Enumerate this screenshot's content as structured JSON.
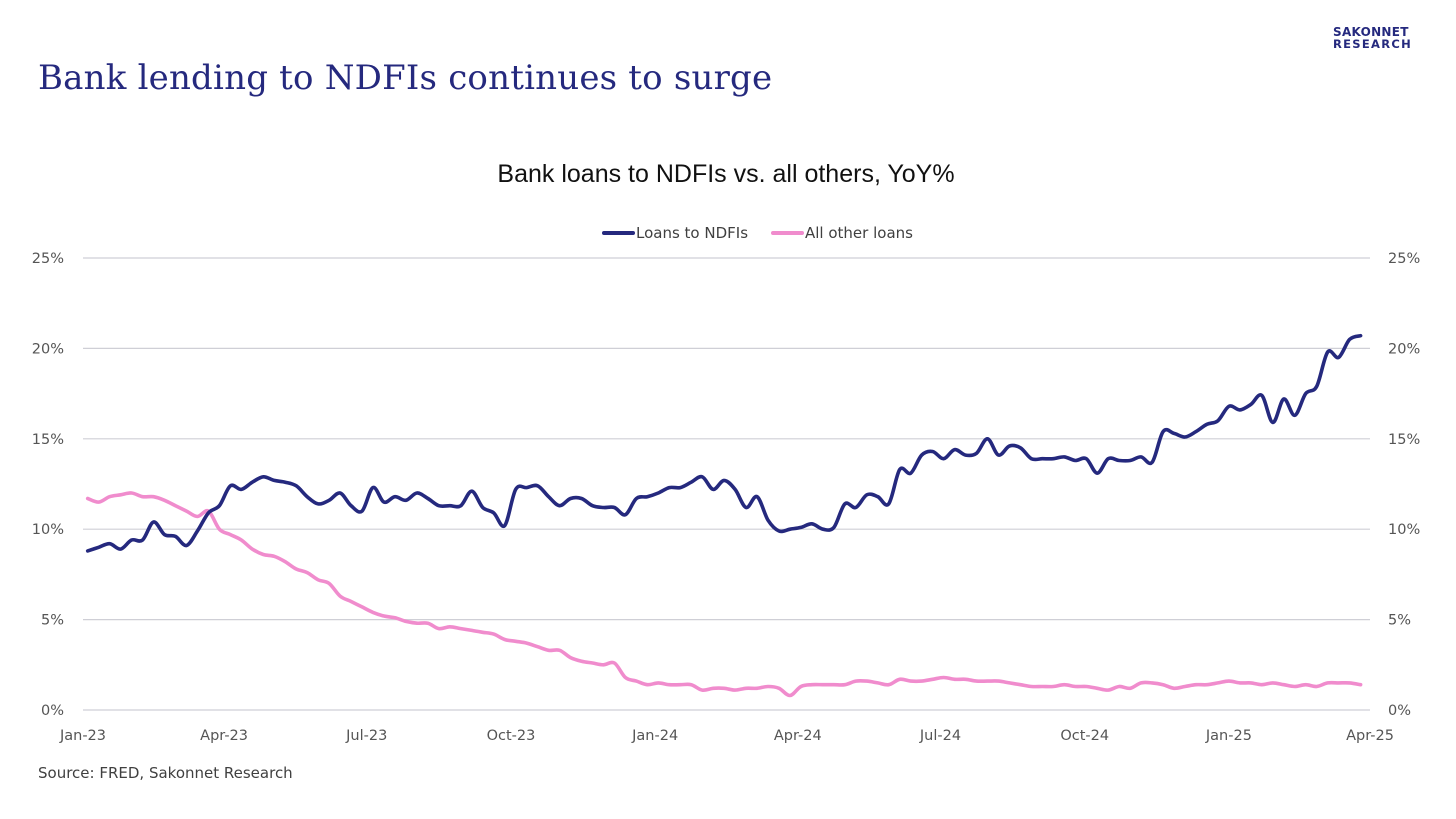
{
  "slide": {
    "title": "Bank lending to NDFIs continues to surge",
    "logo_line1": "SAKONNET",
    "logo_line2": "RESEARCH",
    "source": "Source: FRED, Sakonnet Research"
  },
  "colors": {
    "title": "#25297e",
    "series_ndfi": "#25297e",
    "series_other": "#f08ccd",
    "grid": "#cfcfd6",
    "axis_text": "#555555"
  },
  "chart_data": {
    "type": "line",
    "title": "Bank loans to NDFIs vs. all others, YoY%",
    "xlabel": "",
    "ylabel": "",
    "ylim": [
      0,
      25
    ],
    "y_ticks": [
      0,
      5,
      10,
      15,
      20,
      25
    ],
    "y_tick_labels": [
      "0%",
      "5%",
      "10%",
      "15%",
      "20%",
      "25%"
    ],
    "y_axis_both_sides": true,
    "x_ticks": [
      "2023-01-01",
      "2023-04-01",
      "2023-07-01",
      "2023-10-01",
      "2024-01-01",
      "2024-04-01",
      "2024-07-01",
      "2024-10-01",
      "2025-01-01",
      "2025-04-01"
    ],
    "x_tick_labels": [
      "Jan-23",
      "Apr-23",
      "Jul-23",
      "Oct-23",
      "Jan-24",
      "Apr-24",
      "Jul-24",
      "Oct-24",
      "Jan-25",
      "Apr-25"
    ],
    "xlim": [
      "2023-01-01",
      "2025-04-01"
    ],
    "grid": "horizontal",
    "legend_position": "top-center",
    "series": [
      {
        "name": "Loans to NDFIs",
        "color": "#25297e",
        "points": [
          [
            "2023-01-04",
            8.8
          ],
          [
            "2023-01-11",
            9.0
          ],
          [
            "2023-01-18",
            9.2
          ],
          [
            "2023-01-25",
            8.9
          ],
          [
            "2023-02-01",
            9.4
          ],
          [
            "2023-02-08",
            9.4
          ],
          [
            "2023-02-15",
            10.4
          ],
          [
            "2023-02-22",
            9.7
          ],
          [
            "2023-03-01",
            9.6
          ],
          [
            "2023-03-08",
            9.1
          ],
          [
            "2023-03-15",
            9.9
          ],
          [
            "2023-03-22",
            10.9
          ],
          [
            "2023-03-29",
            11.3
          ],
          [
            "2023-04-05",
            12.4
          ],
          [
            "2023-04-12",
            12.2
          ],
          [
            "2023-04-19",
            12.6
          ],
          [
            "2023-04-26",
            12.9
          ],
          [
            "2023-05-03",
            12.7
          ],
          [
            "2023-05-10",
            12.6
          ],
          [
            "2023-05-17",
            12.4
          ],
          [
            "2023-05-24",
            11.8
          ],
          [
            "2023-05-31",
            11.4
          ],
          [
            "2023-06-07",
            11.6
          ],
          [
            "2023-06-14",
            12.0
          ],
          [
            "2023-06-21",
            11.3
          ],
          [
            "2023-06-28",
            11.0
          ],
          [
            "2023-07-05",
            12.3
          ],
          [
            "2023-07-12",
            11.5
          ],
          [
            "2023-07-19",
            11.8
          ],
          [
            "2023-07-26",
            11.6
          ],
          [
            "2023-08-02",
            12.0
          ],
          [
            "2023-08-09",
            11.7
          ],
          [
            "2023-08-16",
            11.3
          ],
          [
            "2023-08-23",
            11.3
          ],
          [
            "2023-08-30",
            11.3
          ],
          [
            "2023-09-06",
            12.1
          ],
          [
            "2023-09-13",
            11.2
          ],
          [
            "2023-09-20",
            10.9
          ],
          [
            "2023-09-27",
            10.2
          ],
          [
            "2023-10-04",
            12.2
          ],
          [
            "2023-10-11",
            12.3
          ],
          [
            "2023-10-18",
            12.4
          ],
          [
            "2023-10-25",
            11.8
          ],
          [
            "2023-11-01",
            11.3
          ],
          [
            "2023-11-08",
            11.7
          ],
          [
            "2023-11-15",
            11.7
          ],
          [
            "2023-11-22",
            11.3
          ],
          [
            "2023-11-29",
            11.2
          ],
          [
            "2023-12-06",
            11.2
          ],
          [
            "2023-12-13",
            10.8
          ],
          [
            "2023-12-20",
            11.7
          ],
          [
            "2023-12-27",
            11.8
          ],
          [
            "2024-01-03",
            12.0
          ],
          [
            "2024-01-10",
            12.3
          ],
          [
            "2024-01-17",
            12.3
          ],
          [
            "2024-01-24",
            12.6
          ],
          [
            "2024-01-31",
            12.9
          ],
          [
            "2024-02-07",
            12.2
          ],
          [
            "2024-02-14",
            12.7
          ],
          [
            "2024-02-21",
            12.2
          ],
          [
            "2024-02-28",
            11.2
          ],
          [
            "2024-03-06",
            11.8
          ],
          [
            "2024-03-13",
            10.5
          ],
          [
            "2024-03-20",
            9.9
          ],
          [
            "2024-03-27",
            10.0
          ],
          [
            "2024-04-03",
            10.1
          ],
          [
            "2024-04-10",
            10.3
          ],
          [
            "2024-04-17",
            10.0
          ],
          [
            "2024-04-24",
            10.1
          ],
          [
            "2024-05-01",
            11.4
          ],
          [
            "2024-05-08",
            11.2
          ],
          [
            "2024-05-15",
            11.9
          ],
          [
            "2024-05-22",
            11.8
          ],
          [
            "2024-05-29",
            11.4
          ],
          [
            "2024-06-05",
            13.3
          ],
          [
            "2024-06-12",
            13.1
          ],
          [
            "2024-06-19",
            14.1
          ],
          [
            "2024-06-26",
            14.3
          ],
          [
            "2024-07-03",
            13.9
          ],
          [
            "2024-07-10",
            14.4
          ],
          [
            "2024-07-17",
            14.1
          ],
          [
            "2024-07-24",
            14.2
          ],
          [
            "2024-07-31",
            15.0
          ],
          [
            "2024-08-07",
            14.1
          ],
          [
            "2024-08-14",
            14.6
          ],
          [
            "2024-08-21",
            14.5
          ],
          [
            "2024-08-28",
            13.9
          ],
          [
            "2024-09-04",
            13.9
          ],
          [
            "2024-09-11",
            13.9
          ],
          [
            "2024-09-18",
            14.0
          ],
          [
            "2024-09-25",
            13.8
          ],
          [
            "2024-10-02",
            13.9
          ],
          [
            "2024-10-09",
            13.1
          ],
          [
            "2024-10-16",
            13.9
          ],
          [
            "2024-10-23",
            13.8
          ],
          [
            "2024-10-30",
            13.8
          ],
          [
            "2024-11-06",
            14.0
          ],
          [
            "2024-11-13",
            13.7
          ],
          [
            "2024-11-20",
            15.4
          ],
          [
            "2024-11-27",
            15.3
          ],
          [
            "2024-12-04",
            15.1
          ],
          [
            "2024-12-11",
            15.4
          ],
          [
            "2024-12-18",
            15.8
          ],
          [
            "2024-12-25",
            16.0
          ],
          [
            "2025-01-01",
            16.8
          ],
          [
            "2025-01-08",
            16.6
          ],
          [
            "2025-01-15",
            16.9
          ],
          [
            "2025-01-22",
            17.4
          ],
          [
            "2025-01-29",
            15.9
          ],
          [
            "2025-02-05",
            17.2
          ],
          [
            "2025-02-12",
            16.3
          ],
          [
            "2025-02-19",
            17.5
          ],
          [
            "2025-02-26",
            17.9
          ],
          [
            "2025-03-05",
            19.8
          ],
          [
            "2025-03-12",
            19.5
          ],
          [
            "2025-03-19",
            20.5
          ],
          [
            "2025-03-26",
            20.7
          ]
        ]
      },
      {
        "name": "All other loans",
        "color": "#f08ccd",
        "points": [
          [
            "2023-01-04",
            11.7
          ],
          [
            "2023-01-11",
            11.5
          ],
          [
            "2023-01-18",
            11.8
          ],
          [
            "2023-01-25",
            11.9
          ],
          [
            "2023-02-01",
            12.0
          ],
          [
            "2023-02-08",
            11.8
          ],
          [
            "2023-02-15",
            11.8
          ],
          [
            "2023-02-22",
            11.6
          ],
          [
            "2023-03-01",
            11.3
          ],
          [
            "2023-03-08",
            11.0
          ],
          [
            "2023-03-15",
            10.7
          ],
          [
            "2023-03-22",
            11.0
          ],
          [
            "2023-03-29",
            10.0
          ],
          [
            "2023-04-05",
            9.7
          ],
          [
            "2023-04-12",
            9.4
          ],
          [
            "2023-04-19",
            8.9
          ],
          [
            "2023-04-26",
            8.6
          ],
          [
            "2023-05-03",
            8.5
          ],
          [
            "2023-05-10",
            8.2
          ],
          [
            "2023-05-17",
            7.8
          ],
          [
            "2023-05-24",
            7.6
          ],
          [
            "2023-05-31",
            7.2
          ],
          [
            "2023-06-07",
            7.0
          ],
          [
            "2023-06-14",
            6.3
          ],
          [
            "2023-06-21",
            6.0
          ],
          [
            "2023-06-28",
            5.7
          ],
          [
            "2023-07-05",
            5.4
          ],
          [
            "2023-07-12",
            5.2
          ],
          [
            "2023-07-19",
            5.1
          ],
          [
            "2023-07-26",
            4.9
          ],
          [
            "2023-08-02",
            4.8
          ],
          [
            "2023-08-09",
            4.8
          ],
          [
            "2023-08-16",
            4.5
          ],
          [
            "2023-08-23",
            4.6
          ],
          [
            "2023-08-30",
            4.5
          ],
          [
            "2023-09-06",
            4.4
          ],
          [
            "2023-09-13",
            4.3
          ],
          [
            "2023-09-20",
            4.2
          ],
          [
            "2023-09-27",
            3.9
          ],
          [
            "2023-10-04",
            3.8
          ],
          [
            "2023-10-11",
            3.7
          ],
          [
            "2023-10-18",
            3.5
          ],
          [
            "2023-10-25",
            3.3
          ],
          [
            "2023-11-01",
            3.3
          ],
          [
            "2023-11-08",
            2.9
          ],
          [
            "2023-11-15",
            2.7
          ],
          [
            "2023-11-22",
            2.6
          ],
          [
            "2023-11-29",
            2.5
          ],
          [
            "2023-12-06",
            2.6
          ],
          [
            "2023-12-13",
            1.8
          ],
          [
            "2023-12-20",
            1.6
          ],
          [
            "2023-12-27",
            1.4
          ],
          [
            "2024-01-03",
            1.5
          ],
          [
            "2024-01-10",
            1.4
          ],
          [
            "2024-01-17",
            1.4
          ],
          [
            "2024-01-24",
            1.4
          ],
          [
            "2024-01-31",
            1.1
          ],
          [
            "2024-02-07",
            1.2
          ],
          [
            "2024-02-14",
            1.2
          ],
          [
            "2024-02-21",
            1.1
          ],
          [
            "2024-02-28",
            1.2
          ],
          [
            "2024-03-06",
            1.2
          ],
          [
            "2024-03-13",
            1.3
          ],
          [
            "2024-03-20",
            1.2
          ],
          [
            "2024-03-27",
            0.8
          ],
          [
            "2024-04-03",
            1.3
          ],
          [
            "2024-04-10",
            1.4
          ],
          [
            "2024-04-17",
            1.4
          ],
          [
            "2024-04-24",
            1.4
          ],
          [
            "2024-05-01",
            1.4
          ],
          [
            "2024-05-08",
            1.6
          ],
          [
            "2024-05-15",
            1.6
          ],
          [
            "2024-05-22",
            1.5
          ],
          [
            "2024-05-29",
            1.4
          ],
          [
            "2024-06-05",
            1.7
          ],
          [
            "2024-06-12",
            1.6
          ],
          [
            "2024-06-19",
            1.6
          ],
          [
            "2024-06-26",
            1.7
          ],
          [
            "2024-07-03",
            1.8
          ],
          [
            "2024-07-10",
            1.7
          ],
          [
            "2024-07-17",
            1.7
          ],
          [
            "2024-07-24",
            1.6
          ],
          [
            "2024-07-31",
            1.6
          ],
          [
            "2024-08-07",
            1.6
          ],
          [
            "2024-08-14",
            1.5
          ],
          [
            "2024-08-21",
            1.4
          ],
          [
            "2024-08-28",
            1.3
          ],
          [
            "2024-09-04",
            1.3
          ],
          [
            "2024-09-11",
            1.3
          ],
          [
            "2024-09-18",
            1.4
          ],
          [
            "2024-09-25",
            1.3
          ],
          [
            "2024-10-02",
            1.3
          ],
          [
            "2024-10-09",
            1.2
          ],
          [
            "2024-10-16",
            1.1
          ],
          [
            "2024-10-23",
            1.3
          ],
          [
            "2024-10-30",
            1.2
          ],
          [
            "2024-11-06",
            1.5
          ],
          [
            "2024-11-13",
            1.5
          ],
          [
            "2024-11-20",
            1.4
          ],
          [
            "2024-11-27",
            1.2
          ],
          [
            "2024-12-04",
            1.3
          ],
          [
            "2024-12-11",
            1.4
          ],
          [
            "2024-12-18",
            1.4
          ],
          [
            "2024-12-25",
            1.5
          ],
          [
            "2025-01-01",
            1.6
          ],
          [
            "2025-01-08",
            1.5
          ],
          [
            "2025-01-15",
            1.5
          ],
          [
            "2025-01-22",
            1.4
          ],
          [
            "2025-01-29",
            1.5
          ],
          [
            "2025-02-05",
            1.4
          ],
          [
            "2025-02-12",
            1.3
          ],
          [
            "2025-02-19",
            1.4
          ],
          [
            "2025-02-26",
            1.3
          ],
          [
            "2025-03-05",
            1.5
          ],
          [
            "2025-03-12",
            1.5
          ],
          [
            "2025-03-19",
            1.5
          ],
          [
            "2025-03-26",
            1.4
          ]
        ]
      }
    ]
  }
}
